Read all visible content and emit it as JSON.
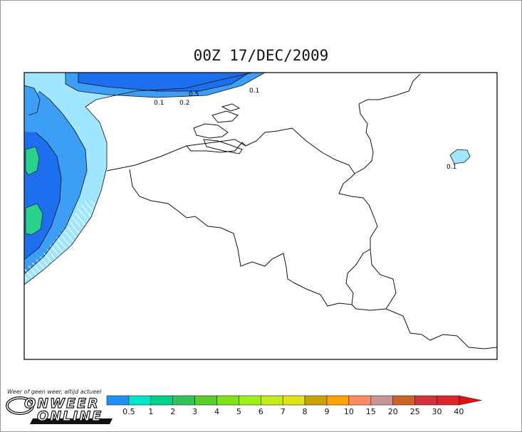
{
  "map": {
    "title": "00Z 17/DEC/2009",
    "contour_labels": [
      "0.1",
      "0.2",
      "0.5",
      "0.1",
      "0.1"
    ]
  },
  "legend": {
    "ticks": [
      "0.5",
      "1",
      "2",
      "3",
      "4",
      "5",
      "6",
      "7",
      "8",
      "9",
      "10",
      "15",
      "20",
      "25",
      "30",
      "40"
    ],
    "colors": [
      "#1e90f5",
      "#00e5c8",
      "#00d28c",
      "#33c35e",
      "#59cc2e",
      "#7fe31a",
      "#9ff01a",
      "#c3ec1a",
      "#e2e21a",
      "#c9a300",
      "#ffa300",
      "#ff8c60",
      "#c89696",
      "#c86428",
      "#d2323c",
      "#d7262e"
    ],
    "arrow_color": "#e50f0f"
  },
  "branding": {
    "tagline": "Weer of geen weer, altijd actueel",
    "logo_line1": "ONWEER",
    "logo_line2": "ONLINE"
  }
}
